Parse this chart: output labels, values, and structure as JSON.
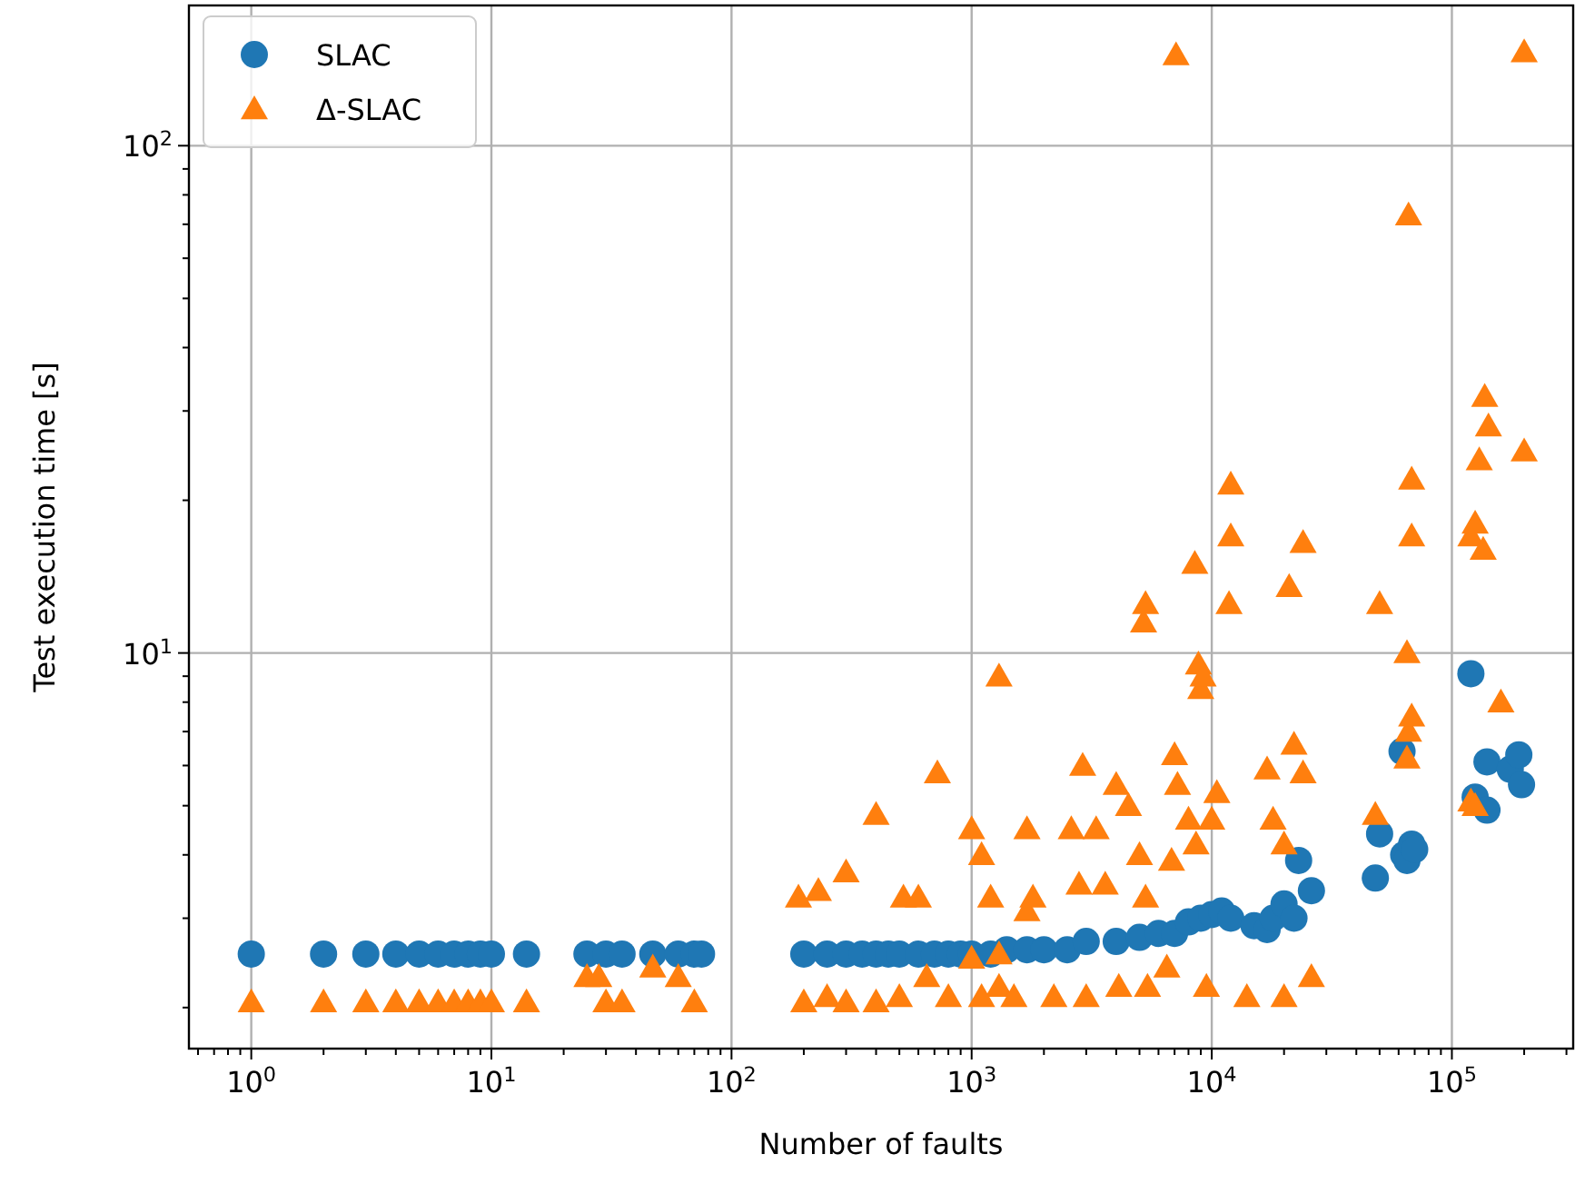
{
  "chart_data": {
    "type": "scatter",
    "xlabel": "Number of faults",
    "ylabel": "Test execution time [s]",
    "log": "xy",
    "grid": true,
    "legend": "top left",
    "xlim": [
      0.55,
      320000
    ],
    "ylim": [
      1.66,
      189
    ],
    "xticks": [
      {
        "value": 1,
        "label": "10$^{0}$"
      },
      {
        "value": 10,
        "label": "10$^{1}$"
      },
      {
        "value": 100,
        "label": "10$^{2}$"
      },
      {
        "value": 1000,
        "label": "10$^{3}$"
      },
      {
        "value": 10000,
        "label": "10$^{4}$"
      },
      {
        "value": 100000,
        "label": "10$^{5}$"
      }
    ],
    "yticks": [
      {
        "value": 2,
        "label": null
      },
      {
        "value": 3,
        "label": null
      },
      {
        "value": 4,
        "label": null
      },
      {
        "value": 5,
        "label": null
      },
      {
        "value": 6,
        "label": null
      },
      {
        "value": 7,
        "label": null
      },
      {
        "value": 8,
        "label": null
      },
      {
        "value": 9,
        "label": null
      },
      {
        "value": 10,
        "label": "10$^{1}$"
      },
      {
        "value": 20,
        "label": null
      },
      {
        "value": 30,
        "label": null
      },
      {
        "value": 40,
        "label": null
      },
      {
        "value": 50,
        "label": null
      },
      {
        "value": 60,
        "label": null
      },
      {
        "value": 70,
        "label": null
      },
      {
        "value": 80,
        "label": null
      },
      {
        "value": 90,
        "label": null
      },
      {
        "value": 100,
        "label": "10$^{2}$"
      }
    ],
    "series": [
      {
        "name": "SLAC",
        "color": "#1f77b4",
        "marker": "circle",
        "x": [
          1,
          2,
          3,
          4,
          5,
          6,
          7,
          8,
          9,
          10,
          14,
          25,
          30,
          35,
          47,
          60,
          70,
          75,
          200,
          250,
          300,
          350,
          400,
          450,
          500,
          600,
          700,
          800,
          900,
          1000,
          1200,
          1400,
          1700,
          2000,
          2500,
          3000,
          4000,
          5000,
          6000,
          7000,
          8000,
          9000,
          10000,
          11000,
          12000,
          15000,
          17000,
          18000,
          20000,
          22000,
          23000,
          26000,
          48000,
          50000,
          62000,
          63000,
          65000,
          68000,
          70000,
          120000,
          125000,
          140000,
          140000,
          175000,
          190000,
          195000
        ],
        "values": [
          2.55,
          2.55,
          2.55,
          2.55,
          2.55,
          2.55,
          2.55,
          2.55,
          2.55,
          2.55,
          2.55,
          2.55,
          2.55,
          2.55,
          2.55,
          2.55,
          2.55,
          2.55,
          2.55,
          2.55,
          2.55,
          2.55,
          2.55,
          2.55,
          2.55,
          2.55,
          2.55,
          2.55,
          2.55,
          2.55,
          2.55,
          2.6,
          2.6,
          2.6,
          2.6,
          2.7,
          2.7,
          2.75,
          2.8,
          2.8,
          2.95,
          3,
          3.05,
          3.1,
          3,
          2.9,
          2.85,
          3,
          3.2,
          3,
          3.9,
          3.4,
          3.6,
          4.4,
          6.4,
          4,
          3.9,
          4.2,
          4.1,
          9.1,
          5.2,
          4.9,
          6.1,
          5.9,
          6.3,
          5.5
        ]
      },
      {
        "name": "Δ-SLAC",
        "color": "#ff7f0e",
        "marker": "triangle",
        "x": [
          1,
          2,
          3,
          4,
          5,
          6,
          7,
          8,
          9,
          10,
          14,
          25,
          28,
          30,
          35,
          47,
          60,
          70,
          200,
          250,
          300,
          400,
          500,
          650,
          800,
          1000,
          1100,
          1300,
          1500,
          2200,
          3000,
          4100,
          5400,
          6500,
          9500,
          14000,
          20000,
          26000,
          190,
          230,
          300,
          400,
          520,
          600,
          720,
          1000,
          1100,
          1200,
          1300,
          1300,
          1700,
          1700,
          1800,
          2600,
          2800,
          2900,
          3300,
          3600,
          4000,
          4500,
          5000,
          5200,
          5300,
          5300,
          6800,
          7000,
          7100,
          7200,
          8000,
          8500,
          8600,
          8800,
          9000,
          9200,
          10000,
          10500,
          11800,
          12000,
          12000,
          17000,
          18000,
          20000,
          21000,
          22000,
          24000,
          24000,
          48000,
          50000,
          65000,
          65000,
          66000,
          66000,
          68000,
          68000,
          68000,
          120000,
          120000,
          125000,
          125000,
          130000,
          135000,
          137000,
          142000,
          160000,
          200000,
          200000
        ],
        "values": [
          2.05,
          2.05,
          2.05,
          2.05,
          2.05,
          2.05,
          2.05,
          2.05,
          2.05,
          2.05,
          2.05,
          2.3,
          2.3,
          2.05,
          2.05,
          2.4,
          2.3,
          2.05,
          2.05,
          2.1,
          2.05,
          2.05,
          2.1,
          2.3,
          2.1,
          2.5,
          2.1,
          2.2,
          2.1,
          2.1,
          2.1,
          2.2,
          2.2,
          2.4,
          2.2,
          2.1,
          2.1,
          2.3,
          3.3,
          3.4,
          3.7,
          4.8,
          3.3,
          3.3,
          5.8,
          4.5,
          4,
          3.3,
          9,
          2.55,
          4.5,
          3.1,
          3.3,
          4.5,
          3.5,
          6,
          4.5,
          3.5,
          5.5,
          5,
          4,
          11.5,
          12.5,
          3.3,
          3.9,
          6.3,
          151,
          5.5,
          4.7,
          15,
          4.2,
          9.5,
          8.5,
          9,
          4.7,
          5.3,
          12.5,
          21.5,
          17,
          5.9,
          4.7,
          4.2,
          13.5,
          6.6,
          16.5,
          5.8,
          4.8,
          12.5,
          6.2,
          10,
          73,
          7,
          22,
          17,
          7.5,
          17,
          5.1,
          18,
          5,
          24,
          16,
          32,
          28,
          8,
          153,
          25
        ]
      }
    ]
  }
}
